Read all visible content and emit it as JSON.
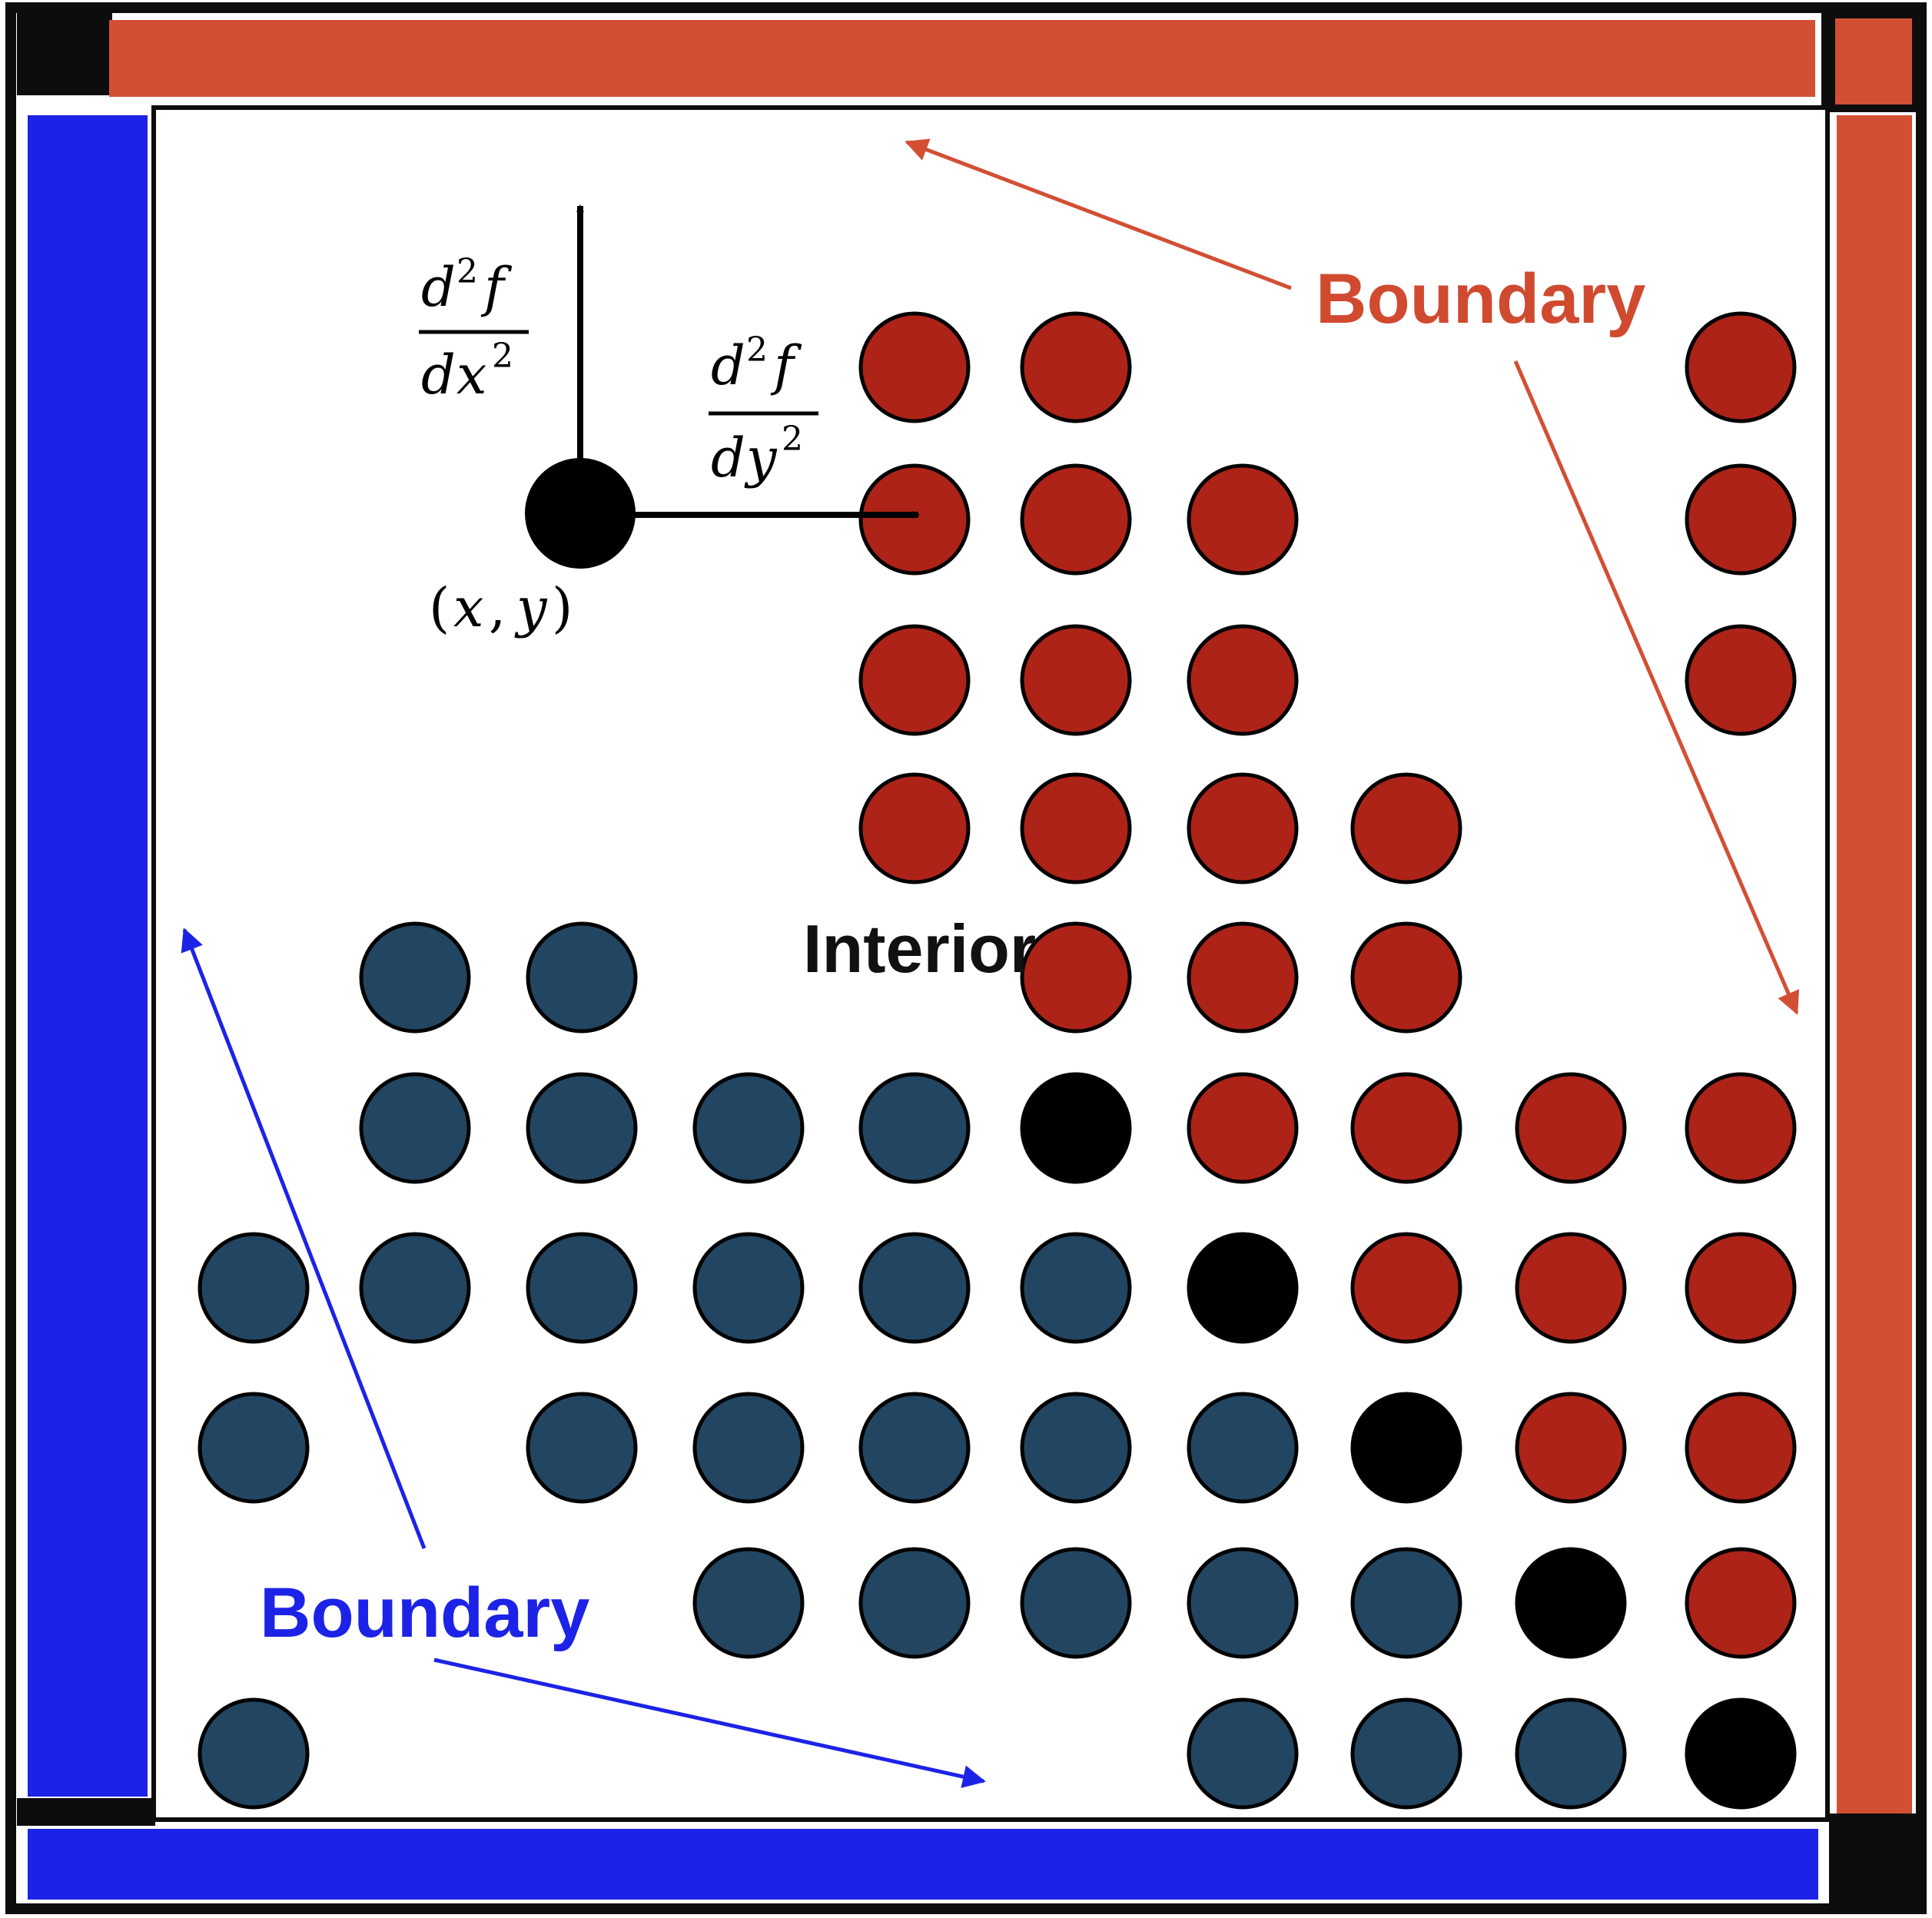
{
  "colors": {
    "frame": "#0d0d0d",
    "boundary_red": "#d24f33",
    "boundary_blue": "#1c23e6",
    "dot_red": "#ad2318",
    "dot_blue": "#224661",
    "dot_black": "#000000",
    "arrow_red": "#d24f33",
    "arrow_blue": "#1c23e6",
    "text_red": "#d04a30",
    "text_blue": "#1c23e6"
  },
  "labels": {
    "interior": "Interior",
    "boundary_top_right": "Boundary",
    "boundary_bottom_left": "Boundary"
  },
  "axes_annotation": {
    "vertical": {
      "d": "d",
      "sup_num": "2",
      "f": "f",
      "dvar": "d",
      "var": "x",
      "sup_den": "2"
    },
    "horizontal": {
      "d": "d",
      "sup_num": "2",
      "f": "f",
      "dvar": "d",
      "var": "y",
      "sup_den": "2"
    },
    "point_label": {
      "open": "(",
      "x": "x",
      "comma": ",",
      "y": "y",
      "close": ")"
    }
  },
  "grid": {
    "columns": 10,
    "rows": 10,
    "legend": "r = red dot, b = dark blue dot, k = black dot, . = empty",
    "cells": [
      "....rr...r",
      "....rrr..r",
      "....rrr..r",
      "....rrrr..",
      ".bb..rrr..",
      ".bbbbkrrrr",
      "bbbbbbkrrr",
      "b.bbbbbkrr",
      "...bbbbbkr",
      "b.....bbbk"
    ]
  }
}
